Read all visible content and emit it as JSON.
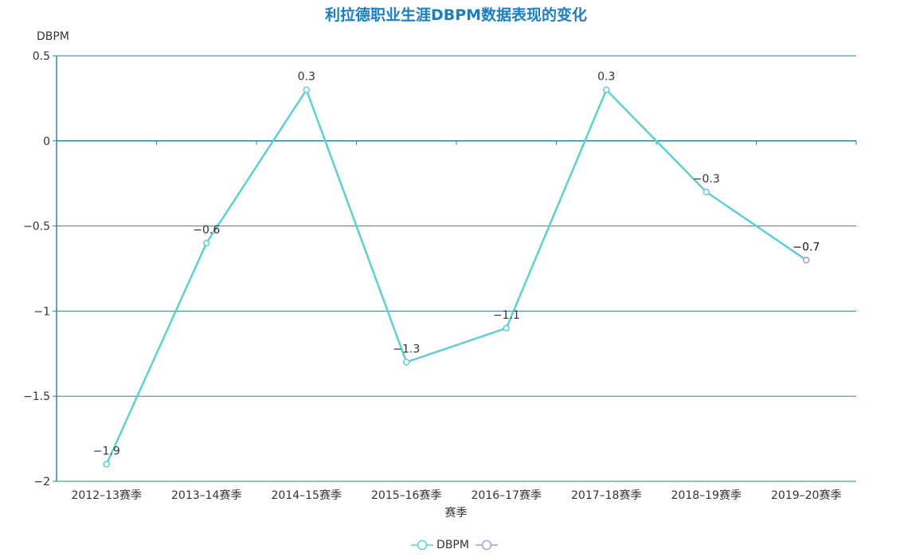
{
  "chart_data": {
    "type": "line",
    "title": "利拉德职业生涯DBPM数据表现的变化",
    "xlabel": "赛季",
    "ylabel": "DBPM",
    "categories": [
      "2012-13赛季",
      "2013-14赛季",
      "2014-15赛季",
      "2015-16赛季",
      "2016-17赛季",
      "2017-18赛季",
      "2018-19赛季",
      "2019-20赛季"
    ],
    "series": [
      {
        "name": "DBPM",
        "color": "#5dd0d3",
        "values": [
          -1.9,
          -0.6,
          0.3,
          -1.3,
          -1.1,
          0.3,
          -0.3,
          -0.7
        ]
      },
      {
        "name": "",
        "color": "#a99bd6",
        "values": [
          null,
          null,
          null,
          null,
          null,
          null,
          null,
          -0.7
        ]
      }
    ],
    "ylim": [
      -2,
      0.5
    ],
    "yticks": [
      0.5,
      0,
      -0.5,
      -1,
      -1.5,
      -2
    ],
    "ytick_labels": [
      "0.5",
      "0",
      "−0.5",
      "−1",
      "−1.5",
      "−2"
    ],
    "grid": true,
    "legend_position": "bottom"
  },
  "legend": {
    "items": [
      {
        "label": "DBPM"
      },
      {
        "label": ""
      }
    ]
  },
  "colors": {
    "title": "#1a7fc1",
    "axis": "#2b8590",
    "line": "#5dd0d3",
    "second": "#a99bd6"
  }
}
